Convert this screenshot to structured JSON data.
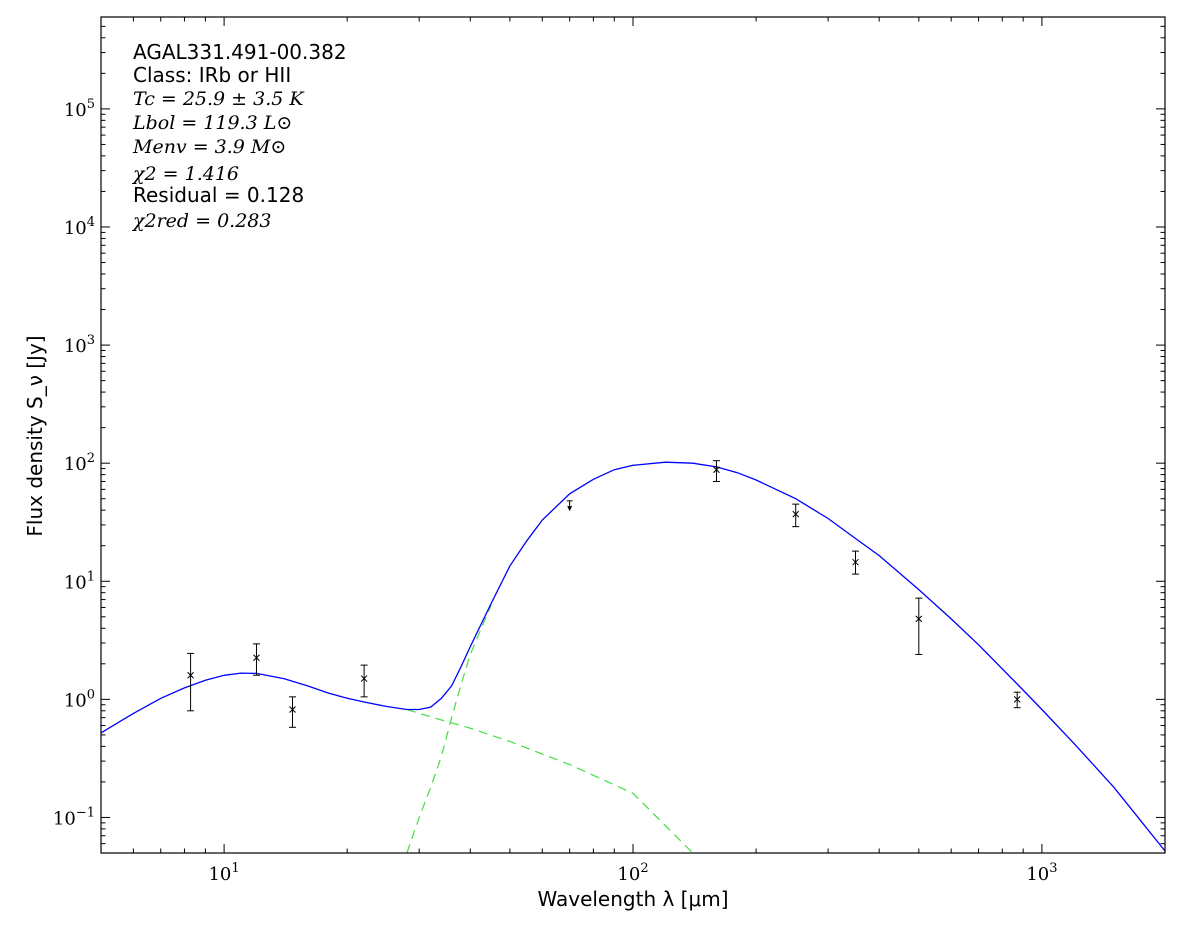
{
  "chart_data": {
    "type": "scatter",
    "title": "",
    "xlabel": "Wavelength λ [μm]",
    "ylabel": "Flux density S_ν [Jy]",
    "xscale": "log",
    "yscale": "log",
    "xlim": [
      5,
      2000
    ],
    "ylim": [
      0.05,
      600000
    ],
    "grid": false,
    "x_ticks": [
      {
        "value": 10,
        "label": "10^1"
      },
      {
        "value": 100,
        "label": "10^2"
      },
      {
        "value": 1000,
        "label": "10^3"
      }
    ],
    "y_ticks": [
      {
        "value": 0.1,
        "label": "10^-1"
      },
      {
        "value": 1,
        "label": "10^0"
      },
      {
        "value": 10,
        "label": "10^1"
      },
      {
        "value": 100,
        "label": "10^2"
      },
      {
        "value": 1000,
        "label": "10^3"
      },
      {
        "value": 10000,
        "label": "10^4"
      },
      {
        "value": 100000,
        "label": "10^5"
      }
    ],
    "annotations": {
      "source": "AGAL331.491-00.382",
      "class": "Class: IRb or HII",
      "tc": "Tc = 25.9 ± 3.5 K",
      "lbol": "Lbol = 119.3 L⊙",
      "menv": "Menv = 3.9 M⊙",
      "chi2": "χ2 = 1.416",
      "residual": "Residual = 0.128",
      "chi2red": "χ2red = 0.283"
    },
    "points": [
      {
        "x": 8.28,
        "y": 1.6,
        "err_lo": 0.8,
        "err_hi": 2.45
      },
      {
        "x": 12.0,
        "y": 2.25,
        "err_lo": 1.6,
        "err_hi": 2.95
      },
      {
        "x": 14.7,
        "y": 0.82,
        "err_lo": 0.58,
        "err_hi": 1.05
      },
      {
        "x": 22.0,
        "y": 1.5,
        "err_lo": 1.05,
        "err_hi": 1.95
      },
      {
        "x": 70,
        "y": 43,
        "err_lo": 40,
        "err_hi": 48,
        "upper_limit": true
      },
      {
        "x": 160,
        "y": 88,
        "err_lo": 70,
        "err_hi": 105
      },
      {
        "x": 250,
        "y": 37,
        "err_lo": 29,
        "err_hi": 45
      },
      {
        "x": 350,
        "y": 14.5,
        "err_lo": 11.5,
        "err_hi": 18
      },
      {
        "x": 500,
        "y": 4.8,
        "err_lo": 2.4,
        "err_hi": 7.2
      },
      {
        "x": 870,
        "y": 1.0,
        "err_lo": 0.85,
        "err_hi": 1.15
      }
    ],
    "total_model": {
      "color": "#0000ff",
      "x": [
        5,
        6,
        7,
        8,
        9,
        10,
        11,
        12,
        14,
        16,
        18,
        20,
        22,
        25,
        28,
        30,
        32,
        34,
        36,
        38,
        40,
        45,
        50,
        55,
        60,
        70,
        80,
        90,
        100,
        120,
        140,
        160,
        180,
        200,
        250,
        300,
        350,
        400,
        500,
        600,
        700,
        870,
        1000,
        1200,
        1500,
        2000
      ],
      "y": [
        0.52,
        0.76,
        1.02,
        1.25,
        1.45,
        1.6,
        1.67,
        1.66,
        1.5,
        1.3,
        1.13,
        1.02,
        0.95,
        0.87,
        0.82,
        0.82,
        0.86,
        1.02,
        1.3,
        1.9,
        2.8,
        6.5,
        13.5,
        22,
        33,
        55,
        73,
        88,
        96,
        102,
        100,
        93,
        83,
        72,
        50,
        34,
        23,
        16.5,
        8.5,
        4.8,
        2.9,
        1.35,
        0.82,
        0.42,
        0.18,
        0.052
      ]
    },
    "components": [
      {
        "color": "#44dd44",
        "style": "dashed",
        "x": [
          28,
          30,
          35,
          40,
          50,
          70,
          100,
          140
        ],
        "y": [
          0.82,
          0.76,
          0.65,
          0.57,
          0.44,
          0.28,
          0.16,
          0.05
        ]
      },
      {
        "color": "#44dd44",
        "style": "dashed",
        "x": [
          28,
          30,
          32,
          34,
          36,
          38,
          40,
          45
        ],
        "y": [
          0.05,
          0.1,
          0.18,
          0.33,
          0.7,
          1.35,
          2.4,
          6.3
        ]
      }
    ]
  }
}
